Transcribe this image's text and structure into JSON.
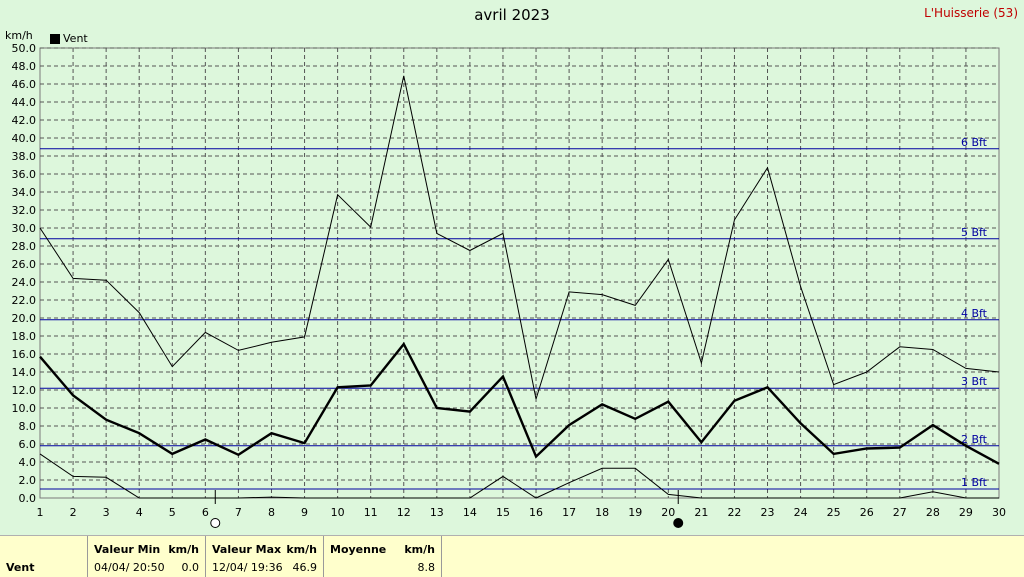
{
  "header": {
    "title": "avril 2023",
    "station": "L'Huisserie (53)",
    "unit": "km/h",
    "legend_label": "Vent"
  },
  "chart_data": {
    "type": "line",
    "title": "avril 2023",
    "ylabel": "km/h",
    "xlabel": "",
    "ylim": [
      0,
      50
    ],
    "xlim": [
      1,
      30
    ],
    "y_ticks": [
      "0.0",
      "2.0",
      "4.0",
      "6.0",
      "8.0",
      "10.0",
      "12.0",
      "14.0",
      "16.0",
      "18.0",
      "20.0",
      "22.0",
      "24.0",
      "26.0",
      "28.0",
      "30.0",
      "32.0",
      "34.0",
      "36.0",
      "38.0",
      "40.0",
      "42.0",
      "44.0",
      "46.0",
      "48.0",
      "50.0"
    ],
    "x_ticks": [
      "1",
      "2",
      "3",
      "4",
      "5",
      "6",
      "7",
      "8",
      "9",
      "10",
      "11",
      "12",
      "13",
      "14",
      "15",
      "16",
      "17",
      "18",
      "19",
      "20",
      "21",
      "22",
      "23",
      "24",
      "25",
      "26",
      "27",
      "28",
      "29",
      "30"
    ],
    "grid": true,
    "legend": "top-left",
    "x": [
      1,
      2,
      3,
      4,
      5,
      6,
      7,
      8,
      9,
      10,
      11,
      12,
      13,
      14,
      15,
      16,
      17,
      18,
      19,
      20,
      21,
      22,
      23,
      24,
      25,
      26,
      27,
      28,
      29,
      30
    ],
    "series": [
      {
        "name": "Vent",
        "role": "max",
        "values": [
          30.0,
          24.4,
          24.2,
          20.6,
          14.6,
          18.4,
          16.4,
          17.3,
          17.9,
          33.7,
          30.1,
          46.9,
          29.4,
          27.5,
          29.4,
          11.0,
          22.9,
          22.6,
          21.4,
          26.5,
          15.0,
          30.9,
          36.7,
          23.5,
          12.6,
          14.0,
          16.8,
          16.5,
          14.4,
          14.0
        ]
      },
      {
        "name": "Vent",
        "role": "moyenne",
        "values": [
          15.7,
          11.4,
          8.7,
          7.2,
          4.9,
          6.5,
          4.8,
          7.2,
          6.1,
          12.3,
          12.5,
          17.1,
          10.0,
          9.6,
          13.5,
          4.6,
          8.1,
          10.4,
          8.8,
          10.7,
          6.2,
          10.8,
          12.3,
          8.3,
          4.9,
          5.5,
          5.6,
          8.1,
          5.8,
          3.8
        ]
      },
      {
        "name": "Vent",
        "role": "min",
        "values": [
          4.9,
          2.4,
          2.3,
          0.0,
          0.0,
          0.0,
          0.0,
          0.1,
          0.0,
          0.0,
          0.0,
          0.0,
          0.0,
          0.0,
          2.4,
          0.0,
          1.7,
          3.3,
          3.3,
          0.4,
          0.0,
          0.0,
          0.0,
          0.0,
          0.0,
          0.0,
          0.0,
          0.7,
          0.0,
          0.0
        ]
      }
    ],
    "beaufort_lines": [
      {
        "label": "1 Bft",
        "value": 1.0
      },
      {
        "label": "2 Bft",
        "value": 5.8
      },
      {
        "label": "3 Bft",
        "value": 12.2
      },
      {
        "label": "4 Bft",
        "value": 19.8
      },
      {
        "label": "5 Bft",
        "value": 28.8
      },
      {
        "label": "6 Bft",
        "value": 38.8
      }
    ],
    "moon_markers": [
      {
        "phase": "full",
        "day": 6.3
      },
      {
        "phase": "new",
        "day": 20.3
      }
    ]
  },
  "stats": {
    "row_label": "Vent",
    "min_header": "Valeur Min",
    "min_unit": "km/h",
    "min_time": "04/04/  20:50",
    "min_value": "0.0",
    "max_header": "Valeur Max",
    "max_unit": "km/h",
    "max_time": "12/04/  19:36",
    "max_value": "46.9",
    "avg_header": "Moyenne",
    "avg_unit": "km/h",
    "avg_value": "8.8"
  },
  "colors": {
    "background": "#ddf7dc",
    "grid": "#555555",
    "beaufort": "#0000a0",
    "series": "#000000",
    "stats_bg": "#ffffcc",
    "station": "#c00000"
  }
}
